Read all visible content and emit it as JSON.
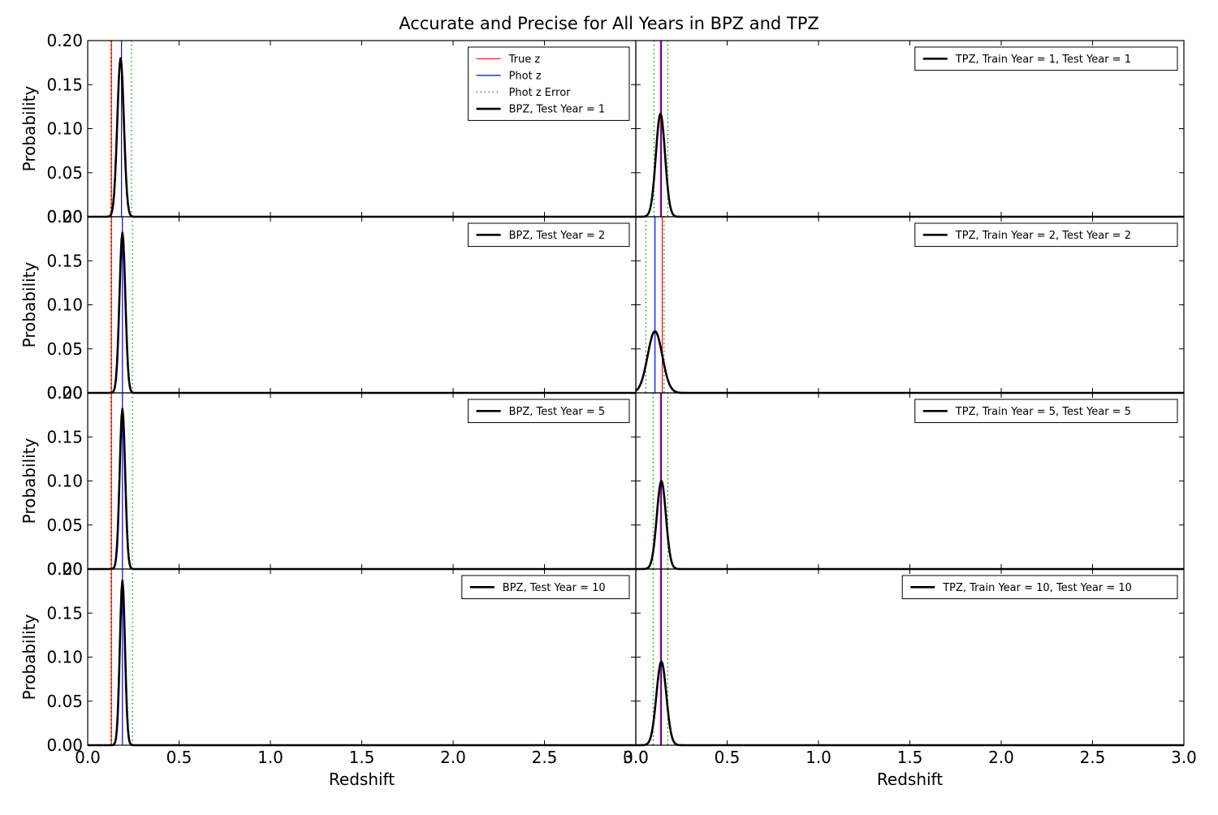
{
  "figure": {
    "title": "Accurate and Precise for All Years in BPZ and TPZ",
    "ylabel": "Probability",
    "xlabel": "Redshift",
    "x_ticks": [
      "0.0",
      "0.5",
      "1.0",
      "1.5",
      "2.0",
      "2.5",
      "3.0"
    ],
    "y_ticks": [
      "0.00",
      "0.05",
      "0.10",
      "0.15",
      "0.20"
    ],
    "legend_common": [
      "True z",
      "Phot z",
      "Phot z Error"
    ],
    "colors": {
      "true_z": "#ff0000",
      "phot_z": "#0000ff",
      "phot_z_error": "#008000",
      "pdf": "#000000"
    }
  },
  "chart_data": [
    {
      "type": "line",
      "panel": "left-row-1",
      "pdf_label": "BPZ, Test Year = 1",
      "show_common_legend": true,
      "xlim": [
        0,
        3
      ],
      "ylim": [
        0,
        0.2
      ],
      "true_z": 0.13,
      "phot_z": 0.185,
      "phot_z_error": [
        0.125,
        0.24
      ],
      "peak_z": 0.18,
      "peak_p": 0.18,
      "sigma": 0.018
    },
    {
      "type": "line",
      "panel": "right-row-1",
      "pdf_label": "TPZ, Train Year = 1, Test Year = 1",
      "show_common_legend": false,
      "xlim": [
        0,
        3
      ],
      "ylim": [
        0,
        0.2
      ],
      "true_z": 0.135,
      "phot_z": 0.14,
      "phot_z_error": [
        0.1,
        0.175
      ],
      "peak_z": 0.135,
      "peak_p": 0.117,
      "sigma": 0.025
    },
    {
      "type": "line",
      "panel": "left-row-2",
      "pdf_label": "BPZ, Test Year = 2",
      "show_common_legend": false,
      "xlim": [
        0,
        3
      ],
      "ylim": [
        0,
        0.2
      ],
      "true_z": 0.13,
      "phot_z": 0.19,
      "phot_z_error": [
        0.125,
        0.245
      ],
      "peak_z": 0.19,
      "peak_p": 0.182,
      "sigma": 0.016
    },
    {
      "type": "line",
      "panel": "right-row-2",
      "pdf_label": "TPZ, Train Year = 2, Test Year = 2",
      "show_common_legend": false,
      "xlim": [
        0,
        3
      ],
      "ylim": [
        0,
        0.2
      ],
      "true_z": 0.145,
      "phot_z": 0.105,
      "phot_z_error": [
        0.055,
        0.155
      ],
      "peak_z": 0.105,
      "peak_p": 0.07,
      "sigma": 0.04
    },
    {
      "type": "line",
      "panel": "left-row-3",
      "pdf_label": "BPZ, Test Year = 5",
      "show_common_legend": false,
      "xlim": [
        0,
        3
      ],
      "ylim": [
        0,
        0.2
      ],
      "true_z": 0.13,
      "phot_z": 0.19,
      "phot_z_error": [
        0.125,
        0.245
      ],
      "peak_z": 0.19,
      "peak_p": 0.182,
      "sigma": 0.015
    },
    {
      "type": "line",
      "panel": "right-row-3",
      "pdf_label": "TPZ, Train Year = 5, Test Year = 5",
      "show_common_legend": false,
      "xlim": [
        0,
        3
      ],
      "ylim": [
        0,
        0.2
      ],
      "true_z": 0.135,
      "phot_z": 0.14,
      "phot_z_error": [
        0.095,
        0.175
      ],
      "peak_z": 0.14,
      "peak_p": 0.1,
      "sigma": 0.025
    },
    {
      "type": "line",
      "panel": "left-row-4",
      "pdf_label": "BPZ, Test Year = 10",
      "show_common_legend": false,
      "xlim": [
        0,
        3
      ],
      "ylim": [
        0,
        0.2
      ],
      "true_z": 0.13,
      "phot_z": 0.19,
      "phot_z_error": [
        0.125,
        0.245
      ],
      "peak_z": 0.19,
      "peak_p": 0.187,
      "sigma": 0.014
    },
    {
      "type": "line",
      "panel": "right-row-4",
      "pdf_label": "TPZ, Train Year = 10, Test Year = 10",
      "show_common_legend": false,
      "xlim": [
        0,
        3
      ],
      "ylim": [
        0,
        0.2
      ],
      "true_z": 0.135,
      "phot_z": 0.14,
      "phot_z_error": [
        0.095,
        0.175
      ],
      "peak_z": 0.14,
      "peak_p": 0.095,
      "sigma": 0.027
    }
  ]
}
